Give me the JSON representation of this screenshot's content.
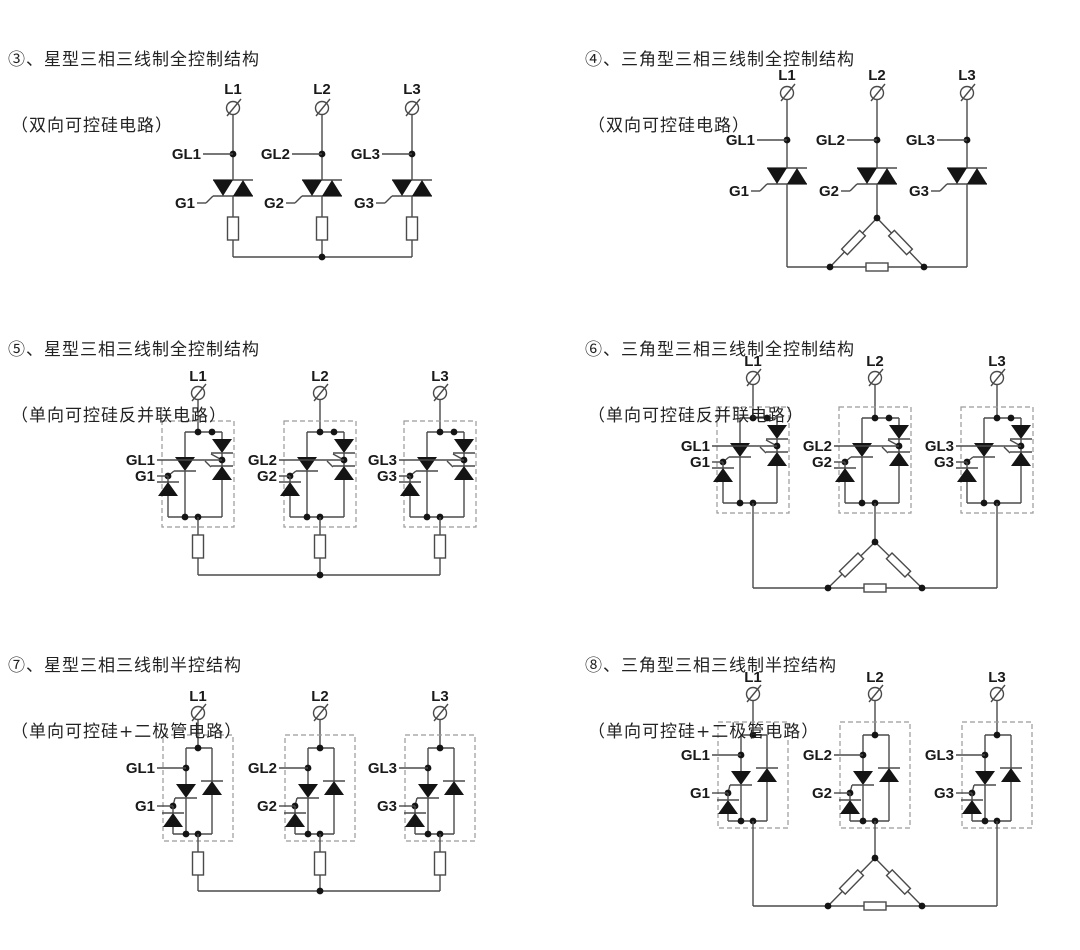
{
  "page": {
    "background": "#ffffff",
    "line_color": "#4a4a4a",
    "device_color": "#141414",
    "outline_color": "#9a9a9a",
    "label_color": "#1a1a1a"
  },
  "panels": [
    {
      "id": "p3",
      "title": "③、星型三相三线制全控制结构",
      "subtitle": "（双向可控硅电路）",
      "connection": "star",
      "device": "triac",
      "phase_labels": [
        "L1",
        "L2",
        "L3"
      ],
      "gl_labels": [
        "GL1",
        "GL2",
        "GL3"
      ],
      "g_labels": [
        "G1",
        "G2",
        "G3"
      ]
    },
    {
      "id": "p4",
      "title": "④、三角型三相三线制全控制结构",
      "subtitle": "（双向可控硅电路）",
      "connection": "delta",
      "device": "triac",
      "phase_labels": [
        "L1",
        "L2",
        "L3"
      ],
      "gl_labels": [
        "GL1",
        "GL2",
        "GL3"
      ],
      "g_labels": [
        "G1",
        "G2",
        "G3"
      ]
    },
    {
      "id": "p5",
      "title": "⑤、星型三相三线制全控制结构",
      "subtitle": "（单向可控硅反并联电路）",
      "connection": "star",
      "device": "scr-antiparallel",
      "phase_labels": [
        "L1",
        "L2",
        "L3"
      ],
      "gl_labels": [
        "GL1",
        "GL2",
        "GL3"
      ],
      "g_labels": [
        "G1",
        "G2",
        "G3"
      ]
    },
    {
      "id": "p6",
      "title": "⑥、三角型三相三线制全控制结构",
      "subtitle": "（单向可控硅反并联电路）",
      "connection": "delta",
      "device": "scr-antiparallel",
      "phase_labels": [
        "L1",
        "L2",
        "L3"
      ],
      "gl_labels": [
        "GL1",
        "GL2",
        "GL3"
      ],
      "g_labels": [
        "G1",
        "G2",
        "G3"
      ]
    },
    {
      "id": "p7",
      "title": "⑦、星型三相三线制半控结构",
      "subtitle": "（单向可控硅+二极管电路）",
      "connection": "star",
      "device": "scr-diode",
      "phase_labels": [
        "L1",
        "L2",
        "L3"
      ],
      "gl_labels": [
        "GL1",
        "GL2",
        "GL3"
      ],
      "g_labels": [
        "G1",
        "G2",
        "G3"
      ]
    },
    {
      "id": "p8",
      "title": "⑧、三角型三相三线制半控结构",
      "subtitle": "（单向可控硅+二极管电路）",
      "connection": "delta",
      "device": "scr-diode",
      "phase_labels": [
        "L1",
        "L2",
        "L3"
      ],
      "gl_labels": [
        "GL1",
        "GL2",
        "GL3"
      ],
      "g_labels": [
        "G1",
        "G2",
        "G3"
      ]
    }
  ]
}
